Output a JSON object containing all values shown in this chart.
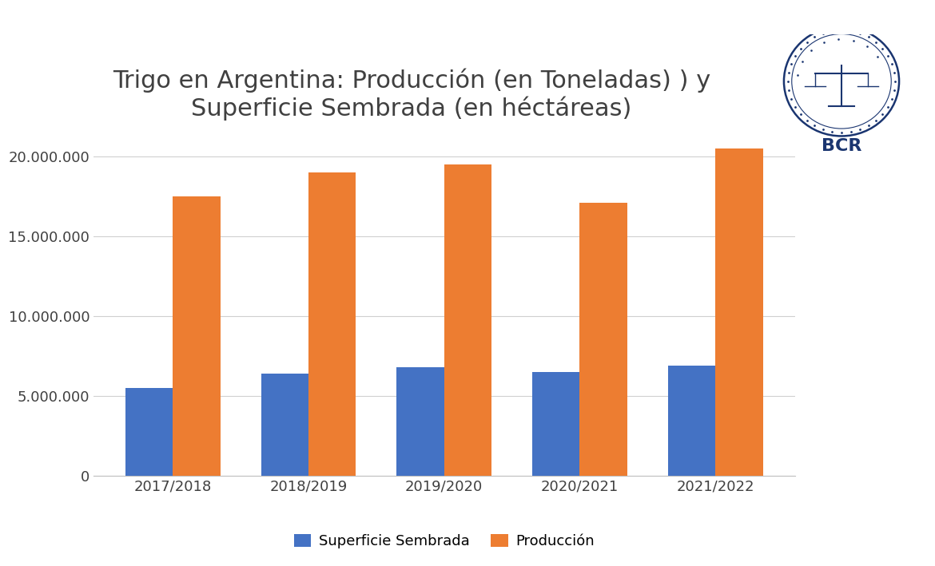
{
  "title_line1": "Trigo en Argentina: Producción (en Toneladas) ) y",
  "title_line2": "Superficie Sembrada (en héctáreas)",
  "categories": [
    "2017/2018",
    "2018/2019",
    "2019/2020",
    "2020/2021",
    "2021/2022"
  ],
  "superficie": [
    5500000,
    6400000,
    6800000,
    6500000,
    6900000
  ],
  "produccion": [
    17500000,
    19000000,
    19500000,
    17100000,
    20500000
  ],
  "color_superficie": "#4472C4",
  "color_produccion": "#ED7D31",
  "legend_superficie": "Superficie Sembrada",
  "legend_produccion": "Producción",
  "ylim": [
    0,
    22000000
  ],
  "yticks": [
    0,
    5000000,
    10000000,
    15000000,
    20000000
  ],
  "background_color": "#FFFFFF",
  "title_fontsize": 22,
  "tick_fontsize": 13,
  "legend_fontsize": 13,
  "bar_width": 0.35,
  "bcr_color": "#1A3570"
}
